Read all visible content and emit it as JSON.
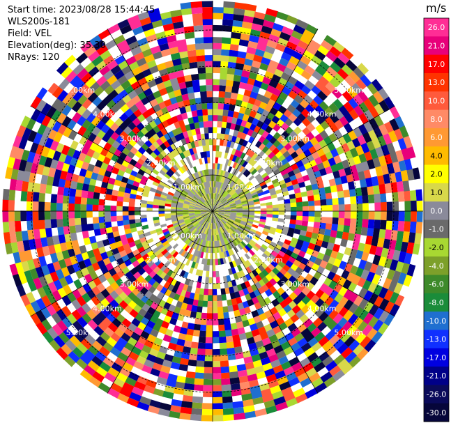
{
  "info": {
    "start_time": "Start time: 2023/08/28 15:44:45",
    "instrument": "WLS200s-181",
    "field": "Field: VEL",
    "elevation": "Elevation(deg): 35.30",
    "nrays": "NRays: 120"
  },
  "colorbar": {
    "unit": "m/s",
    "ticks": [
      "26.0",
      "21.0",
      "17.0",
      "13.0",
      "10.0",
      "8.0",
      "6.0",
      "4.0",
      "2.0",
      "1.0",
      "0.0",
      "-1.0",
      "-2.0",
      "-4.0",
      "-6.0",
      "-8.0",
      "-10.0",
      "-13.0",
      "-17.0",
      "-21.0",
      "-26.0",
      "-30.0"
    ],
    "colors": [
      "#ff2d95",
      "#e8007a",
      "#ff0000",
      "#ff3300",
      "#ff5a3c",
      "#ff8a66",
      "#ff9933",
      "#ffbb00",
      "#ffff00",
      "#d8d84a",
      "#8a8a9a",
      "#6a6a6a",
      "#a8d832",
      "#7da02a",
      "#3d8a2a",
      "#1a8c3a",
      "#1f6fd0",
      "#1030ff",
      "#0000e0",
      "#000088",
      "#0a0a5a",
      "#06063a"
    ]
  },
  "map": {
    "ring_labels": [
      "1.00km",
      "2.00km",
      "3.00km",
      "4.00km",
      "5.00km"
    ],
    "nrays": 120,
    "ngates": 35,
    "range_km": 5.8
  }
}
